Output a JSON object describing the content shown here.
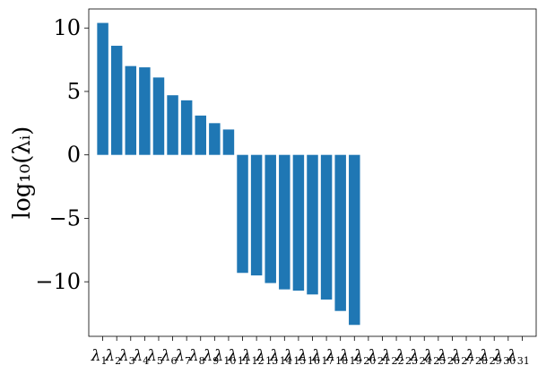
{
  "chart_data": {
    "type": "bar",
    "title": "",
    "xlabel": "",
    "ylabel": "log₁₀(λᵢ)",
    "ylim": [
      -14.3,
      11.5
    ],
    "xlim": [
      0,
      32
    ],
    "grid": false,
    "bar_color": "#1f77b4",
    "categories": [
      "λ1",
      "λ2",
      "λ3",
      "λ4",
      "λ5",
      "λ6",
      "λ7",
      "λ8",
      "λ9",
      "λ10",
      "λ11",
      "λ12",
      "λ13",
      "λ14",
      "λ15",
      "λ16",
      "λ17",
      "λ18",
      "λ19",
      "λ20",
      "λ21",
      "λ22",
      "λ23",
      "λ24",
      "λ25",
      "λ26",
      "λ27",
      "λ28",
      "λ29",
      "λ30",
      "λ31"
    ],
    "category_symbol": "λ",
    "category_subscripts": [
      "1",
      "2",
      "3",
      "4",
      "5",
      "6",
      "7",
      "8",
      "9",
      "10",
      "11",
      "12",
      "13",
      "14",
      "15",
      "16",
      "17",
      "18",
      "19",
      "20",
      "21",
      "22",
      "23",
      "24",
      "25",
      "26",
      "27",
      "28",
      "29",
      "30",
      "31"
    ],
    "values": [
      10.4,
      8.6,
      7.0,
      6.9,
      6.1,
      4.7,
      4.3,
      3.1,
      2.5,
      2.0,
      -9.3,
      -9.5,
      -10.1,
      -10.6,
      -10.7,
      -11.0,
      -11.4,
      -12.3,
      -13.4,
      null,
      null,
      null,
      null,
      null,
      null,
      null,
      null,
      null,
      null,
      null,
      null
    ],
    "yticks": [
      10,
      5,
      0,
      -5,
      -10
    ],
    "ytick_labels": [
      "10",
      "5",
      "0",
      "−5",
      "−10"
    ]
  }
}
